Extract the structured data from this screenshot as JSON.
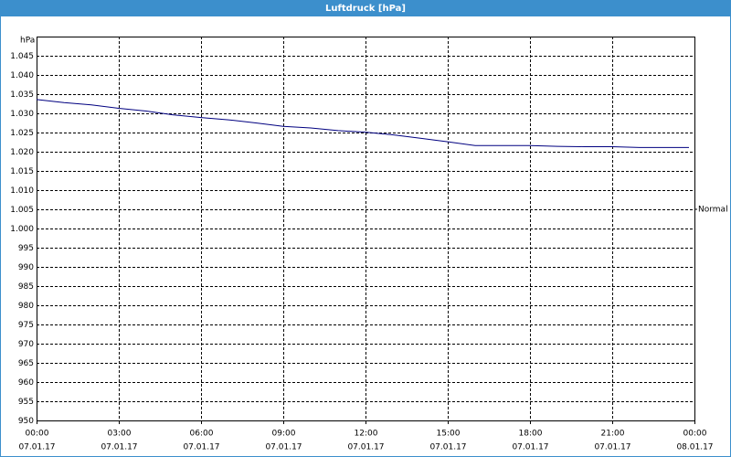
{
  "chart_data": {
    "type": "line",
    "title": "Luftdruck [hPa]",
    "y_unit": "hPa",
    "x": [
      0,
      1,
      2,
      3,
      4,
      5,
      6,
      7,
      8,
      9,
      10,
      11,
      12,
      13,
      14,
      15,
      16,
      17,
      18,
      19,
      20,
      21,
      22,
      23,
      23.8
    ],
    "series": [
      {
        "name": "Luftdruck",
        "color": "#000080",
        "values": [
          1033.6,
          1032.8,
          1032.2,
          1031.3,
          1030.6,
          1029.6,
          1028.9,
          1028.3,
          1027.5,
          1026.6,
          1026.2,
          1025.5,
          1025.1,
          1024.4,
          1023.5,
          1022.6,
          1021.6,
          1021.6,
          1021.6,
          1021.4,
          1021.3,
          1021.3,
          1021.1,
          1021.1,
          1021.1
        ]
      }
    ],
    "xlim": [
      0,
      24
    ],
    "xticks": [
      {
        "value": 0,
        "label": "00:00"
      },
      {
        "value": 3,
        "label": "03:00"
      },
      {
        "value": 6,
        "label": "06:00"
      },
      {
        "value": 9,
        "label": "09:00"
      },
      {
        "value": 12,
        "label": "12:00"
      },
      {
        "value": 15,
        "label": "15:00"
      },
      {
        "value": 18,
        "label": "18:00"
      },
      {
        "value": 21,
        "label": "21:00"
      },
      {
        "value": 24,
        "label": "00:00"
      }
    ],
    "xtick_dates": [
      "07.01.17",
      "07.01.17",
      "07.01.17",
      "07.01.17",
      "07.01.17",
      "07.01.17",
      "07.01.17",
      "07.01.17",
      "08.01.17"
    ],
    "ylim": [
      950,
      1050
    ],
    "yticks": [
      950,
      955,
      960,
      965,
      970,
      975,
      980,
      985,
      990,
      995,
      {
        "value": 1000,
        "label": "1.000"
      },
      {
        "value": 1005,
        "label": "1.005"
      },
      {
        "value": 1010,
        "label": "1.010"
      },
      {
        "value": 1015,
        "label": "1.015"
      },
      {
        "value": 1020,
        "label": "1.020"
      },
      {
        "value": 1025,
        "label": "1.025"
      },
      {
        "value": 1030,
        "label": "1.030"
      },
      {
        "value": 1035,
        "label": "1.035"
      },
      {
        "value": 1040,
        "label": "1.040"
      },
      {
        "value": 1045,
        "label": "1.045"
      }
    ],
    "reference": {
      "label": "Normal",
      "value": 1005
    },
    "grid": true
  }
}
